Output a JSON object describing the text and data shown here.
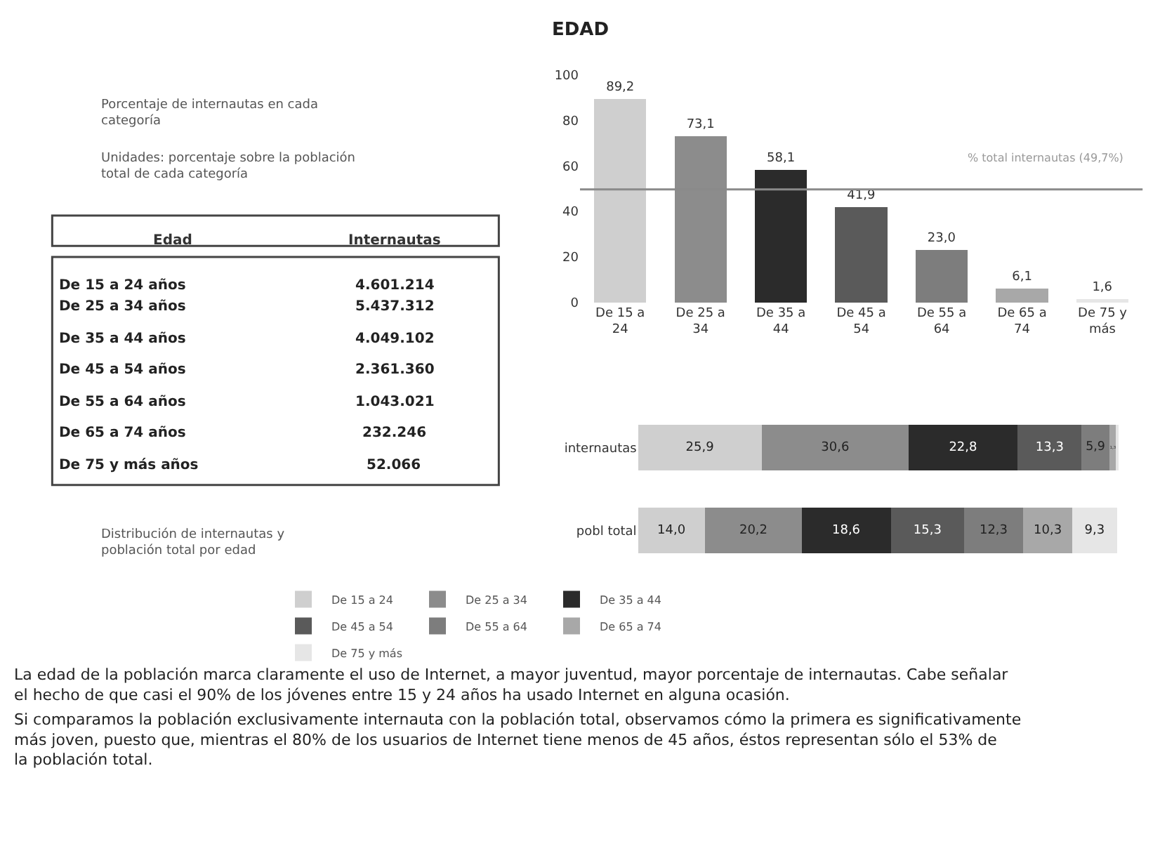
{
  "chart_data": [
    {
      "type": "bar",
      "categories": [
        "De 15 a 24",
        "De 25 a 34",
        "De 35 a 44",
        "De 45 a 54",
        "De 55 a 64",
        "De 65 a 74",
        "De 75 y más"
      ],
      "values": [
        89.2,
        73.1,
        58.1,
        41.9,
        23.0,
        6.1,
        1.6
      ],
      "colors": [
        "#cfcfcf",
        "#8c8c8c",
        "#2b2b2b",
        "#5a5a5a",
        "#7d7d7d",
        "#a8a8a8",
        "#e6e6e6"
      ],
      "value_labels": [
        "89,2",
        "73,1",
        "58,1",
        "41,9",
        "23,0",
        "6,1",
        "1,6"
      ],
      "ylim": [
        0,
        100
      ],
      "yticks": [
        0,
        20,
        40,
        60,
        80,
        100
      ],
      "grid": false,
      "legend": false,
      "ref_lines": [
        {
          "axis": "y",
          "value": 49.7,
          "label": "% total internautas (49,7%)",
          "color": "#8a8a8a"
        }
      ],
      "annotations": [
        "Porcentaje de internautas en cada categoría",
        "Unidades: porcentaje sobre la población total de cada categoría"
      ]
    },
    {
      "type": "bar",
      "orientation": "horizontal",
      "stacked": true,
      "categories": [
        "internautas",
        "pobl total"
      ],
      "tick_labels": "y",
      "legend": "bottom",
      "series": [
        {
          "name": "De 15 a 24",
          "color": "#cfcfcf",
          "values": [
            25.9,
            14.0
          ],
          "value_labels": [
            "25,9",
            "14,0"
          ]
        },
        {
          "name": "De 25 a 34",
          "color": "#8c8c8c",
          "values": [
            30.6,
            20.2
          ],
          "value_labels": [
            "30,6",
            "20,2"
          ]
        },
        {
          "name": "De 35 a 44",
          "color": "#2b2b2b",
          "values": [
            22.8,
            18.6
          ],
          "value_labels": [
            "22,8",
            "18,6"
          ]
        },
        {
          "name": "De 45 a 54",
          "color": "#5a5a5a",
          "values": [
            13.3,
            15.3
          ],
          "value_labels": [
            "13,3",
            "15,3"
          ]
        },
        {
          "name": "De 55 a 64",
          "color": "#7d7d7d",
          "values": [
            5.9,
            12.3
          ],
          "value_labels": [
            "5,9",
            "12,3"
          ]
        },
        {
          "name": "De 65 a 74",
          "color": "#a8a8a8",
          "values": [
            1.3,
            10.3
          ],
          "value_labels": [
            "1,3",
            "10,3"
          ]
        },
        {
          "name": "De 75 y más",
          "color": "#e6e6e6",
          "values": [
            0.3,
            9.3
          ],
          "value_labels": [
            null,
            "9,3"
          ]
        }
      ],
      "annotations": [
        "Distribución de internautas y población total por edad"
      ]
    },
    {
      "type": "other",
      "title": "EDAD",
      "xlabel": "Edad",
      "ylabel": "Internautas",
      "categories": [
        "De 15 a 24 años",
        "De 25 a 34 años",
        "De 35 a 44 años",
        "De 45 a 54 años",
        "De 55 a 64 años",
        "De 65 a 74 años",
        "De 75 y más años"
      ],
      "values": [
        4601214,
        5437312,
        4049102,
        2361360,
        1043021,
        232246,
        52066
      ],
      "value_labels": [
        "4.601.214",
        "5.437.312",
        "4.049.102",
        "2.361.360",
        "1.043.021",
        "232.246",
        "52.066"
      ],
      "annotations": [
        "La edad de la población marca claramente el uso de Internet, a mayor juventud, mayor porcentaje de internautas. Cabe señalar el hecho de que casi el 90% de los jóvenes entre 15 y 24 años ha usado Internet en alguna ocasión.",
        "Si comparamos la población exclusivamente internauta con la población total, observamos cómo la primera es significativamente más joven, puesto que, mientras el 80% de los usuarios de Internet tiene menos de 45 años, éstos representan sólo el 53% de la población total."
      ]
    }
  ]
}
